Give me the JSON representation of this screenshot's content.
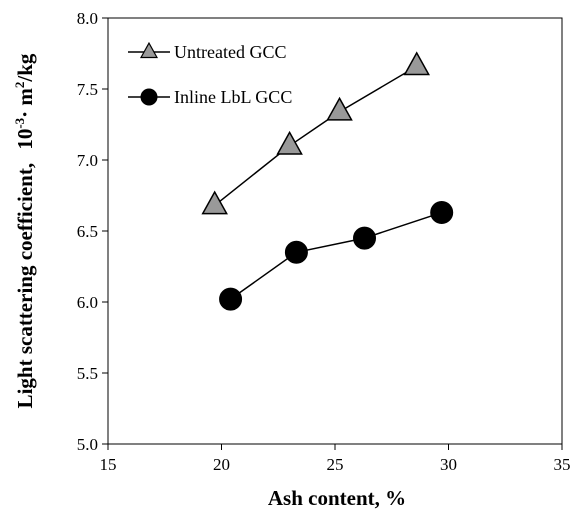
{
  "chart_data": {
    "type": "line",
    "xlabel": "Ash content, %",
    "ylabel_main": "Light scattering coefficient,",
    "ylabel_unit_prefix": "10",
    "ylabel_unit_exp": "-3",
    "ylabel_unit_mid": "· m",
    "ylabel_unit_exp2": "2",
    "ylabel_unit_suffix": "/kg",
    "xlim": [
      15,
      35
    ],
    "ylim": [
      5.0,
      8.0
    ],
    "xticks": [
      "15",
      "20",
      "25",
      "30",
      "35"
    ],
    "yticks": [
      "5.0",
      "5.5",
      "6.0",
      "6.5",
      "7.0",
      "7.5",
      "8.0"
    ],
    "grid": false,
    "legend_position": "top-left",
    "series": [
      {
        "name": "Untreated GCC",
        "marker": "triangle",
        "color": "#999999",
        "x": [
          19.7,
          23.0,
          25.2,
          28.6
        ],
        "y": [
          6.68,
          7.1,
          7.34,
          7.66
        ]
      },
      {
        "name": "Inline LbL GCC",
        "marker": "circle",
        "color": "#000000",
        "x": [
          20.4,
          23.3,
          26.3,
          29.7
        ],
        "y": [
          6.02,
          6.35,
          6.45,
          6.63
        ]
      }
    ]
  }
}
